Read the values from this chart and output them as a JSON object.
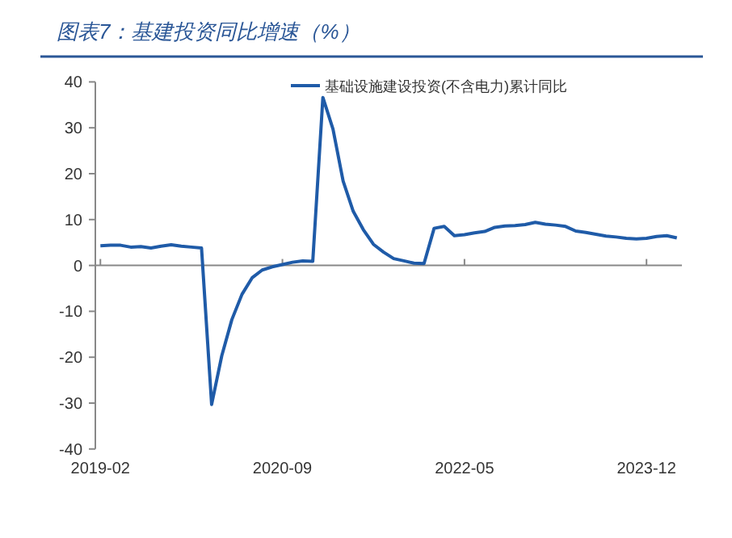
{
  "chart_data": {
    "type": "line",
    "title": "图表7：基建投资同比增速（%）",
    "categories": [
      "2019-02",
      null,
      null,
      null,
      null,
      null,
      null,
      null,
      null,
      null,
      null,
      null,
      null,
      null,
      null,
      null,
      null,
      null,
      "2020-09",
      null,
      null,
      null,
      null,
      null,
      null,
      null,
      null,
      null,
      null,
      null,
      null,
      null,
      null,
      null,
      null,
      null,
      "2022-05",
      null,
      null,
      null,
      null,
      null,
      null,
      null,
      null,
      null,
      null,
      null,
      null,
      null,
      null,
      null,
      null,
      null,
      "2023-12",
      null,
      null,
      null
    ],
    "series": [
      {
        "name": "基础设施建设投资(不含电力)累计同比",
        "color": "#1f5ba8",
        "values": [
          4.3,
          4.4,
          4.4,
          4.0,
          4.1,
          3.8,
          4.2,
          4.5,
          4.2,
          4.0,
          3.8,
          -30.3,
          -19.7,
          -11.8,
          -6.3,
          -2.7,
          -1.0,
          -0.3,
          0.2,
          0.7,
          1.0,
          0.9,
          36.6,
          29.7,
          18.4,
          11.8,
          7.8,
          4.6,
          2.9,
          1.5,
          1.0,
          0.5,
          0.4,
          8.1,
          8.5,
          6.5,
          6.7,
          7.1,
          7.4,
          8.3,
          8.6,
          8.7,
          8.9,
          9.4,
          9.0,
          8.8,
          8.5,
          7.5,
          7.2,
          6.8,
          6.4,
          6.2,
          5.9,
          5.8,
          5.9,
          6.3,
          6.5,
          6.0
        ]
      }
    ],
    "ylim": [
      -40,
      40
    ],
    "yticks": [
      -40,
      -30,
      -20,
      -10,
      0,
      10,
      20,
      30,
      40
    ],
    "legend": "top",
    "marker": "none",
    "line_style": "solid"
  }
}
